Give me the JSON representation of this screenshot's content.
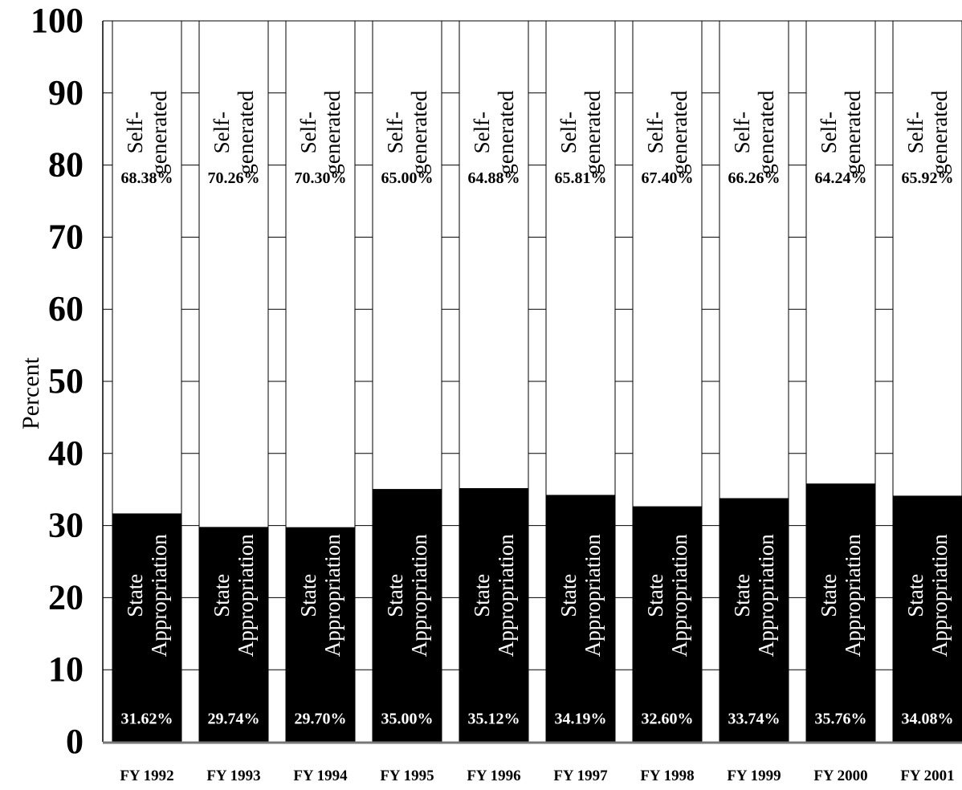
{
  "chart_data": {
    "type": "bar",
    "stacked": true,
    "percent_stacked": true,
    "ylabel": "Percent",
    "xlabel": "",
    "ylim": [
      0,
      100
    ],
    "yticks": [
      "0",
      "10",
      "20",
      "30",
      "40",
      "50",
      "60",
      "70",
      "80",
      "90",
      "100"
    ],
    "grid": true,
    "categories": [
      "FY 1992",
      "FY 1993",
      "FY 1994",
      "FY 1995",
      "FY 1996",
      "FY 1997",
      "FY 1998",
      "FY 1999",
      "FY 2000",
      "FY 2001"
    ],
    "series": [
      {
        "name": "State Appropriation",
        "label_lines": [
          "State",
          "Appropriation"
        ],
        "color": "#000000",
        "values": [
          31.62,
          29.74,
          29.7,
          35.0,
          35.12,
          34.19,
          32.6,
          33.74,
          35.76,
          34.08
        ],
        "data_labels": [
          "31.62%",
          "29.74%",
          "29.70%",
          "35.00%",
          "35.12%",
          "34.19%",
          "32.60%",
          "33.74%",
          "35.76%",
          "34.08%"
        ]
      },
      {
        "name": "Self-generated",
        "label_lines": [
          "Self-",
          "generated"
        ],
        "color": "#ffffff",
        "values": [
          68.38,
          70.26,
          70.3,
          65.0,
          64.88,
          65.81,
          67.4,
          66.26,
          64.24,
          65.92
        ],
        "data_labels": [
          "68.38%",
          "70.26%",
          "70.30%",
          "65.00%",
          "64.88%",
          "65.81%",
          "67.40%",
          "66.26%",
          "64.24%",
          "65.92%"
        ]
      }
    ]
  }
}
